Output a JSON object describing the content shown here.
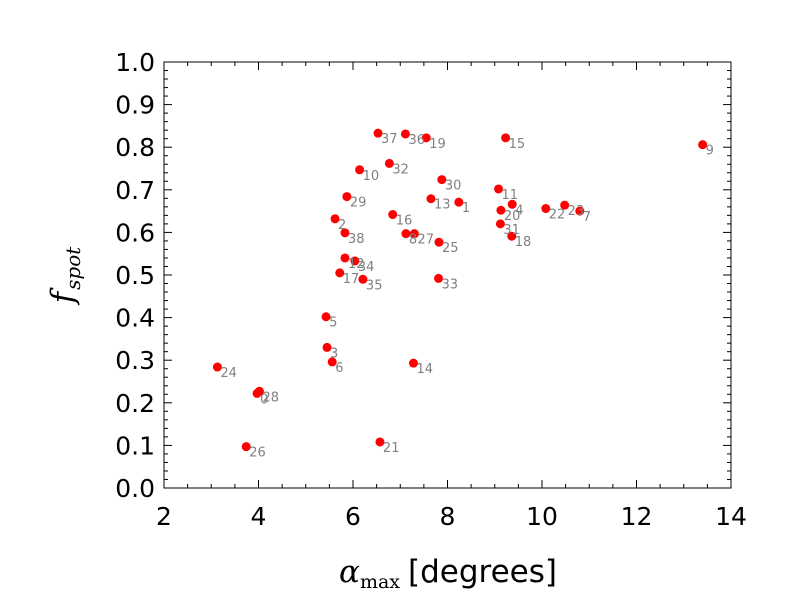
{
  "chart_data": {
    "type": "scatter",
    "title": "",
    "xlabel_symbol": "α",
    "xlabel_subscript": "max",
    "xlabel_unit": "[degrees]",
    "ylabel_symbol": "f",
    "ylabel_subscript": "spot",
    "xlim": [
      2,
      14
    ],
    "ylim": [
      0.0,
      1.0
    ],
    "x_ticks": [
      "2",
      "4",
      "6",
      "8",
      "10",
      "12",
      "14"
    ],
    "y_ticks": [
      "0.0",
      "0.1",
      "0.2",
      "0.3",
      "0.4",
      "0.5",
      "0.6",
      "0.7",
      "0.8",
      "0.9",
      "1.0"
    ],
    "grid": false,
    "marker_color": "#ff0000",
    "label_color": "#808080",
    "points": [
      {
        "label": "0",
        "x": 3.97,
        "y": 0.222
      },
      {
        "label": "1",
        "x": 8.24,
        "y": 0.671
      },
      {
        "label": "2",
        "x": 5.62,
        "y": 0.632
      },
      {
        "label": "3",
        "x": 5.45,
        "y": 0.33
      },
      {
        "label": "4",
        "x": 9.37,
        "y": 0.666
      },
      {
        "label": "5",
        "x": 5.43,
        "y": 0.402
      },
      {
        "label": "6",
        "x": 5.56,
        "y": 0.296
      },
      {
        "label": "7",
        "x": 10.8,
        "y": 0.65
      },
      {
        "label": "8",
        "x": 7.12,
        "y": 0.597
      },
      {
        "label": "9",
        "x": 13.4,
        "y": 0.806
      },
      {
        "label": "10",
        "x": 6.14,
        "y": 0.747
      },
      {
        "label": "11",
        "x": 9.08,
        "y": 0.702
      },
      {
        "label": "12",
        "x": 5.83,
        "y": 0.54
      },
      {
        "label": "13",
        "x": 7.65,
        "y": 0.679
      },
      {
        "label": "14",
        "x": 7.28,
        "y": 0.293
      },
      {
        "label": "15",
        "x": 9.23,
        "y": 0.822
      },
      {
        "label": "16",
        "x": 6.84,
        "y": 0.642
      },
      {
        "label": "17",
        "x": 5.72,
        "y": 0.505
      },
      {
        "label": "18",
        "x": 9.36,
        "y": 0.591
      },
      {
        "label": "19",
        "x": 7.55,
        "y": 0.822
      },
      {
        "label": "20",
        "x": 9.13,
        "y": 0.652
      },
      {
        "label": "21",
        "x": 6.57,
        "y": 0.108
      },
      {
        "label": "22",
        "x": 10.08,
        "y": 0.656
      },
      {
        "label": "23",
        "x": 10.48,
        "y": 0.664
      },
      {
        "label": "24",
        "x": 3.13,
        "y": 0.284
      },
      {
        "label": "25",
        "x": 7.82,
        "y": 0.577
      },
      {
        "label": "26",
        "x": 3.74,
        "y": 0.097
      },
      {
        "label": "27",
        "x": 7.3,
        "y": 0.597
      },
      {
        "label": "28",
        "x": 4.02,
        "y": 0.227
      },
      {
        "label": "29",
        "x": 5.87,
        "y": 0.684
      },
      {
        "label": "30",
        "x": 7.88,
        "y": 0.724
      },
      {
        "label": "31",
        "x": 9.12,
        "y": 0.62
      },
      {
        "label": "32",
        "x": 6.77,
        "y": 0.762
      },
      {
        "label": "33",
        "x": 7.81,
        "y": 0.492
      },
      {
        "label": "34",
        "x": 6.04,
        "y": 0.533
      },
      {
        "label": "35",
        "x": 6.21,
        "y": 0.49
      },
      {
        "label": "36",
        "x": 7.11,
        "y": 0.831
      },
      {
        "label": "37",
        "x": 6.53,
        "y": 0.833
      },
      {
        "label": "38",
        "x": 5.83,
        "y": 0.599
      }
    ]
  }
}
